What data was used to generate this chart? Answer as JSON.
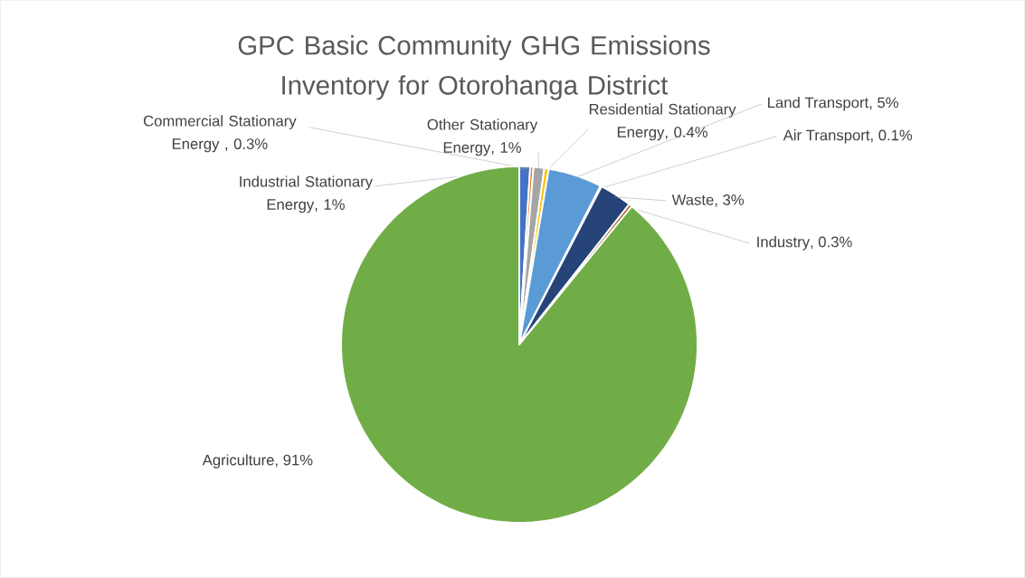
{
  "chart_data": {
    "type": "pie",
    "title": "GPC Basic Community GHG Emissions Inventory for Otorohanga District",
    "categories": [
      "Industrial Stationary Energy",
      "Commercial Stationary Energy ",
      "Other Stationary Energy",
      "Residential Stationary Energy",
      "Land Transport",
      "Air Transport",
      "Waste",
      "Industry",
      "Agriculture"
    ],
    "values": [
      1,
      0.3,
      1,
      0.4,
      5,
      0.1,
      3,
      0.3,
      91
    ],
    "value_labels": [
      ", 1%",
      ", 0.3%",
      ", 1%",
      ", 0.4%",
      ", 5%",
      ", 0.1%",
      ", 3%",
      ", 0.3%",
      ", 91%"
    ],
    "colors": [
      "#4472c4",
      "#ed7d31",
      "#a5a5a5",
      "#ffc000",
      "#5b9bd5",
      "#70ad47",
      "#264478",
      "#9e480e",
      "#70ad47"
    ]
  }
}
